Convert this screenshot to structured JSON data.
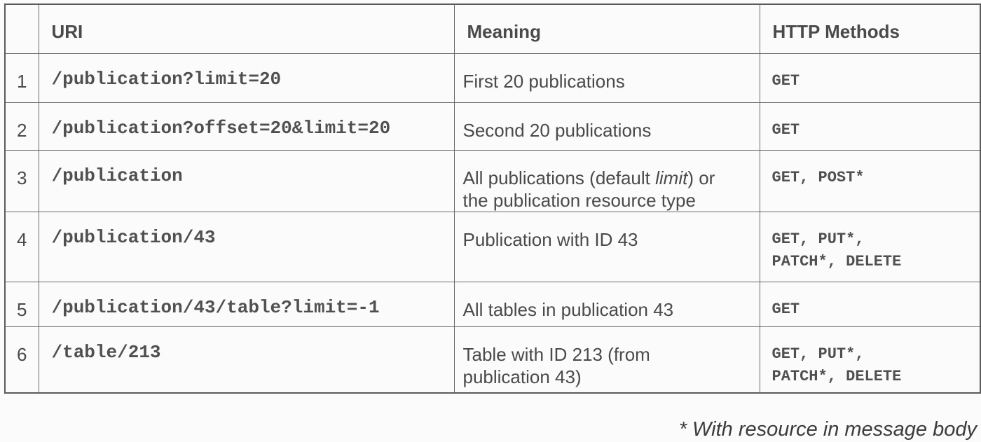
{
  "table": {
    "headers": {
      "index": "",
      "uri": "URI",
      "meaning": "Meaning",
      "methods": "HTTP Methods"
    },
    "rows": [
      {
        "index": "1",
        "uri": "/publication?limit=20",
        "meaning": "First 20 publications",
        "methods_line1": "GET",
        "methods_line2": ""
      },
      {
        "index": "2",
        "uri": "/publication?offset=20&limit=20",
        "meaning": "Second 20 publications",
        "methods_line1": "GET",
        "methods_line2": ""
      },
      {
        "index": "3",
        "uri": "/publication",
        "meaning_before": "All publications (default ",
        "meaning_italic": "limit",
        "meaning_after": ") or",
        "meaning_line2": "the publication resource type",
        "methods_line1": "GET, POST*",
        "methods_line2": ""
      },
      {
        "index": "4",
        "uri": "/publication/43",
        "meaning": "Publication with ID 43",
        "methods_line1": "GET, PUT*,",
        "methods_line2": "PATCH*, DELETE"
      },
      {
        "index": "5",
        "uri": "/publication/43/table?limit=-1",
        "meaning": "All tables in publication 43",
        "methods_line1": "GET",
        "methods_line2": ""
      },
      {
        "index": "6",
        "uri": "/table/213",
        "meaning_line1": "Table with ID 213 (from",
        "meaning_line2": "publication 43)",
        "methods_line1": "GET, PUT*,",
        "methods_line2": "PATCH*, DELETE"
      }
    ]
  },
  "footnote": "* With resource in message body"
}
